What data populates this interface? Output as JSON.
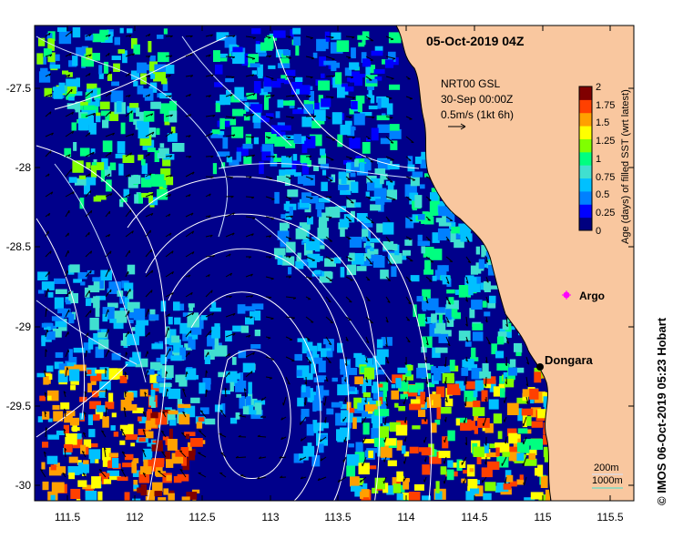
{
  "map": {
    "title": "05-Oct-2019 04Z",
    "product": "NRT00 GSL",
    "vector_time": "30-Sep 00:00Z",
    "vector_scale": "0.5m/s (1kt 6h)",
    "credit": "© IMOS 06-Oct-2019 05:23 Hobart",
    "colorbar": {
      "label": "Age (days) of filled SST (wrt latest)",
      "ticks": [
        "2",
        "1.75",
        "1.5",
        "1.25",
        "1",
        "0.75",
        "0.5",
        "0.25",
        "0"
      ],
      "colors": [
        "#000080",
        "#0000ff",
        "#0080ff",
        "#00c0ff",
        "#40e0d0",
        "#00ff80",
        "#80ff00",
        "#ffff00",
        "#ffa000",
        "#ff4000",
        "#800000"
      ]
    },
    "y_ticks": [
      "-27.5",
      "-28",
      "-28.5",
      "-29",
      "-29.5",
      "-30"
    ],
    "x_ticks": [
      "111.5",
      "112",
      "112.5",
      "113",
      "113.5",
      "114",
      "114.5",
      "115",
      "115.5"
    ],
    "places": {
      "argo": "Argo",
      "dongara": "Dongara"
    },
    "depth_legend": {
      "d200": "200m",
      "d1000": "1000m"
    },
    "colors": {
      "land": "#f9c79f",
      "ocean_deep": "#00008b",
      "argo": "#ff00ff"
    }
  }
}
